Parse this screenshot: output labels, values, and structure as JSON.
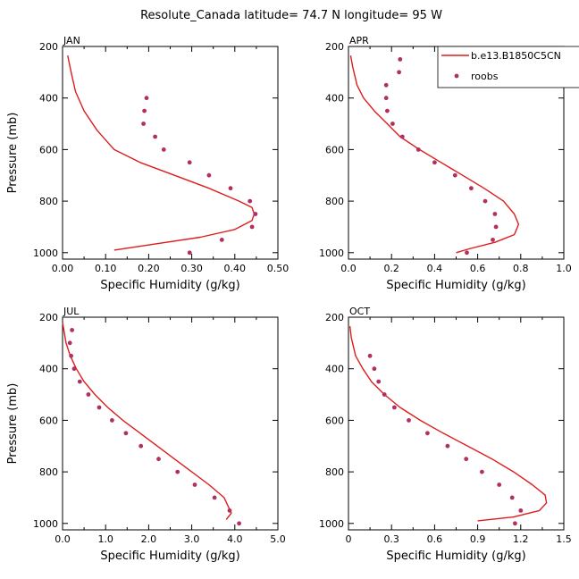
{
  "figure": {
    "title": "Resolute_Canada   latitude= 74.7 N longitude= 95 W"
  },
  "legend": {
    "model_label": "b.e13.B1850C5CN",
    "obs_label": "roobs",
    "model_color": "#dd1c1c",
    "obs_color": "#b03060"
  },
  "chart_data": [
    {
      "type": "line",
      "panel": "JAN",
      "xlabel": "Specific Humidity (g/kg)",
      "ylabel": "Pressure (mb)",
      "xlim": [
        0,
        0.5
      ],
      "ylim": [
        200,
        1025
      ],
      "y_inverted": true,
      "xticks": [
        0,
        0.05,
        0.1,
        0.15,
        0.2,
        0.25,
        0.3,
        0.35,
        0.4,
        0.45,
        0.5
      ],
      "xtick_labels": [
        "0.00",
        "0.10",
        "0.20",
        "0.30",
        "0.40",
        "0.50"
      ],
      "yticks": [
        200,
        400,
        600,
        800,
        1000
      ],
      "series": [
        {
          "name": "b.e13.B1850C5CN",
          "kind": "line",
          "x": [
            0.012,
            0.015,
            0.02,
            0.03,
            0.05,
            0.08,
            0.12,
            0.18,
            0.26,
            0.34,
            0.41,
            0.44,
            0.445,
            0.44,
            0.4,
            0.32,
            0.22,
            0.12
          ],
          "y": [
            235,
            260,
            300,
            375,
            450,
            525,
            600,
            650,
            700,
            750,
            800,
            825,
            850,
            875,
            910,
            940,
            965,
            990
          ]
        },
        {
          "name": "roobs",
          "kind": "scatter",
          "x": [
            0.195,
            0.19,
            0.188,
            0.215,
            0.235,
            0.295,
            0.34,
            0.39,
            0.435,
            0.448,
            0.44,
            0.37,
            0.295
          ],
          "y": [
            400,
            450,
            500,
            550,
            600,
            650,
            700,
            750,
            800,
            850,
            900,
            950,
            1000
          ]
        }
      ]
    },
    {
      "type": "line",
      "panel": "APR",
      "xlabel": "Specific Humidity (g/kg)",
      "ylabel": "Pressure (mb)",
      "xlim": [
        0,
        1
      ],
      "ylim": [
        200,
        1025
      ],
      "y_inverted": true,
      "xticks": [
        0,
        0.1,
        0.2,
        0.3,
        0.4,
        0.5,
        0.6,
        0.7,
        0.8,
        0.9,
        1
      ],
      "xtick_labels": [
        "0.0",
        "0.2",
        "0.4",
        "0.6",
        "0.8",
        "1.0"
      ],
      "yticks": [
        200,
        400,
        600,
        800,
        1000
      ],
      "series": [
        {
          "name": "b.e13.B1850C5CN",
          "kind": "line",
          "x": [
            0.01,
            0.02,
            0.04,
            0.07,
            0.12,
            0.18,
            0.24,
            0.33,
            0.43,
            0.53,
            0.63,
            0.72,
            0.77,
            0.79,
            0.77,
            0.68,
            0.56,
            0.5
          ],
          "y": [
            235,
            280,
            350,
            400,
            450,
            500,
            550,
            600,
            650,
            700,
            750,
            800,
            850,
            890,
            930,
            960,
            985,
            1000
          ]
        },
        {
          "name": "roobs",
          "kind": "scatter",
          "x": [
            0.24,
            0.235,
            0.175,
            0.175,
            0.18,
            0.205,
            0.25,
            0.325,
            0.4,
            0.495,
            0.57,
            0.635,
            0.68,
            0.685,
            0.67,
            0.55
          ],
          "y": [
            250,
            300,
            350,
            400,
            450,
            500,
            550,
            600,
            650,
            700,
            750,
            800,
            850,
            900,
            950,
            1000
          ]
        }
      ]
    },
    {
      "type": "line",
      "panel": "JUL",
      "xlabel": "Specific Humidity (g/kg)",
      "ylabel": "Pressure (mb)",
      "xlim": [
        0,
        5
      ],
      "ylim": [
        200,
        1025
      ],
      "y_inverted": true,
      "xticks": [
        0,
        0.5,
        1,
        1.5,
        2,
        2.5,
        3,
        3.5,
        4,
        4.5,
        5
      ],
      "xtick_labels": [
        "0.0",
        "1.0",
        "2.0",
        "3.0",
        "4.0",
        "5.0"
      ],
      "yticks": [
        200,
        400,
        600,
        800,
        1000
      ],
      "series": [
        {
          "name": "b.e13.B1850C5CN",
          "kind": "line",
          "x": [
            0.0,
            0.08,
            0.18,
            0.32,
            0.5,
            0.75,
            1.05,
            1.4,
            1.8,
            2.2,
            2.6,
            3.0,
            3.4,
            3.75,
            3.92,
            3.8
          ],
          "y": [
            220,
            300,
            350,
            400,
            450,
            500,
            550,
            600,
            650,
            700,
            750,
            800,
            850,
            900,
            960,
            985
          ]
        },
        {
          "name": "roobs",
          "kind": "scatter",
          "x": [
            0.22,
            0.17,
            0.2,
            0.27,
            0.4,
            0.6,
            0.85,
            1.15,
            1.47,
            1.82,
            2.23,
            2.67,
            3.07,
            3.53,
            3.88,
            4.1
          ],
          "y": [
            250,
            300,
            350,
            400,
            450,
            500,
            550,
            600,
            650,
            700,
            750,
            800,
            850,
            900,
            950,
            1000
          ]
        }
      ]
    },
    {
      "type": "line",
      "panel": "OCT",
      "xlabel": "Specific Humidity (g/kg)",
      "ylabel": "Pressure (mb)",
      "xlim": [
        0,
        1.5
      ],
      "ylim": [
        200,
        1025
      ],
      "y_inverted": true,
      "xticks": [
        0,
        0.15,
        0.3,
        0.45,
        0.6,
        0.75,
        0.9,
        1.05,
        1.2,
        1.35,
        1.5
      ],
      "xtick_labels": [
        "0",
        "0.3",
        "0.6",
        "0.9",
        "1.2",
        "1.5"
      ],
      "yticks": [
        200,
        400,
        600,
        800,
        1000
      ],
      "series": [
        {
          "name": "b.e13.B1850C5CN",
          "kind": "line",
          "x": [
            0.01,
            0.02,
            0.05,
            0.1,
            0.16,
            0.25,
            0.36,
            0.5,
            0.66,
            0.83,
            1.0,
            1.15,
            1.28,
            1.37,
            1.38,
            1.33,
            1.15,
            0.9
          ],
          "y": [
            235,
            280,
            350,
            400,
            450,
            500,
            550,
            600,
            650,
            700,
            750,
            800,
            850,
            890,
            920,
            950,
            975,
            990
          ]
        },
        {
          "name": "roobs",
          "kind": "scatter",
          "x": [
            0.15,
            0.18,
            0.21,
            0.25,
            0.32,
            0.42,
            0.55,
            0.69,
            0.82,
            0.93,
            1.05,
            1.14,
            1.2,
            1.16
          ],
          "y": [
            350,
            400,
            450,
            500,
            550,
            600,
            650,
            700,
            750,
            800,
            850,
            900,
            950,
            1000
          ]
        }
      ]
    }
  ]
}
